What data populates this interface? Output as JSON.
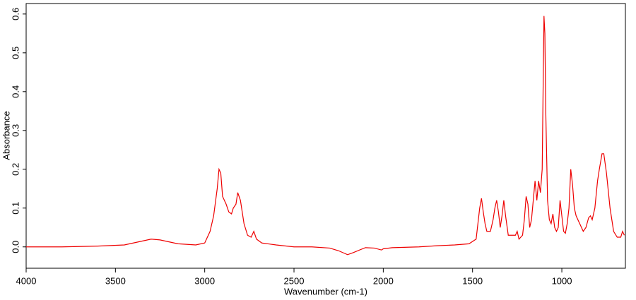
{
  "chart_data": {
    "type": "line",
    "xlabel": "Wavenumber (cm-1)",
    "ylabel": "Absorbance",
    "color": "#ee0000",
    "x": [
      4000,
      3800,
      3600,
      3450,
      3350,
      3300,
      3250,
      3150,
      3050,
      3000,
      2970,
      2950,
      2930,
      2920,
      2910,
      2900,
      2880,
      2865,
      2850,
      2840,
      2825,
      2815,
      2800,
      2780,
      2760,
      2740,
      2725,
      2710,
      2680,
      2600,
      2500,
      2400,
      2300,
      2250,
      2200,
      2170,
      2100,
      2050,
      2010,
      2000,
      1950,
      1800,
      1700,
      1600,
      1520,
      1480,
      1470,
      1460,
      1450,
      1440,
      1430,
      1420,
      1400,
      1385,
      1375,
      1365,
      1355,
      1345,
      1335,
      1325,
      1315,
      1300,
      1280,
      1260,
      1250,
      1240,
      1220,
      1210,
      1200,
      1190,
      1180,
      1170,
      1160,
      1150,
      1140,
      1130,
      1120,
      1110,
      1105,
      1100,
      1095,
      1090,
      1080,
      1070,
      1060,
      1050,
      1040,
      1030,
      1020,
      1010,
      1000,
      990,
      980,
      970,
      960,
      950,
      940,
      930,
      920,
      900,
      880,
      865,
      850,
      840,
      830,
      815,
      800,
      790,
      775,
      765,
      750,
      730,
      710,
      690,
      670,
      660,
      650
    ],
    "values": [
      0.0,
      0.0,
      0.002,
      0.005,
      0.015,
      0.02,
      0.018,
      0.008,
      0.005,
      0.01,
      0.04,
      0.08,
      0.15,
      0.2,
      0.19,
      0.13,
      0.11,
      0.09,
      0.085,
      0.1,
      0.11,
      0.14,
      0.12,
      0.06,
      0.03,
      0.025,
      0.04,
      0.02,
      0.01,
      0.005,
      0.0,
      0.0,
      -0.003,
      -0.01,
      -0.02,
      -0.015,
      -0.002,
      -0.003,
      -0.008,
      -0.005,
      -0.002,
      0.0,
      0.003,
      0.005,
      0.008,
      0.02,
      0.06,
      0.1,
      0.125,
      0.09,
      0.06,
      0.04,
      0.04,
      0.07,
      0.1,
      0.12,
      0.09,
      0.05,
      0.08,
      0.12,
      0.08,
      0.03,
      0.03,
      0.03,
      0.04,
      0.02,
      0.03,
      0.07,
      0.13,
      0.11,
      0.05,
      0.07,
      0.12,
      0.17,
      0.12,
      0.17,
      0.14,
      0.2,
      0.4,
      0.595,
      0.55,
      0.35,
      0.12,
      0.07,
      0.06,
      0.085,
      0.05,
      0.04,
      0.05,
      0.12,
      0.08,
      0.04,
      0.035,
      0.06,
      0.1,
      0.2,
      0.16,
      0.1,
      0.08,
      0.06,
      0.04,
      0.05,
      0.075,
      0.08,
      0.07,
      0.1,
      0.17,
      0.2,
      0.24,
      0.24,
      0.19,
      0.1,
      0.04,
      0.025,
      0.025,
      0.04,
      0.03
    ],
    "xlim": [
      4000,
      644
    ],
    "xticks": [
      4000,
      3500,
      3000,
      2500,
      2000,
      1500,
      1000
    ],
    "ylim": [
      -0.055,
      0.627
    ],
    "yticks": [
      {
        "value": 0,
        "label": "0.0"
      },
      0.1,
      0.2,
      0.3,
      0.4,
      0.5,
      0.6
    ]
  }
}
